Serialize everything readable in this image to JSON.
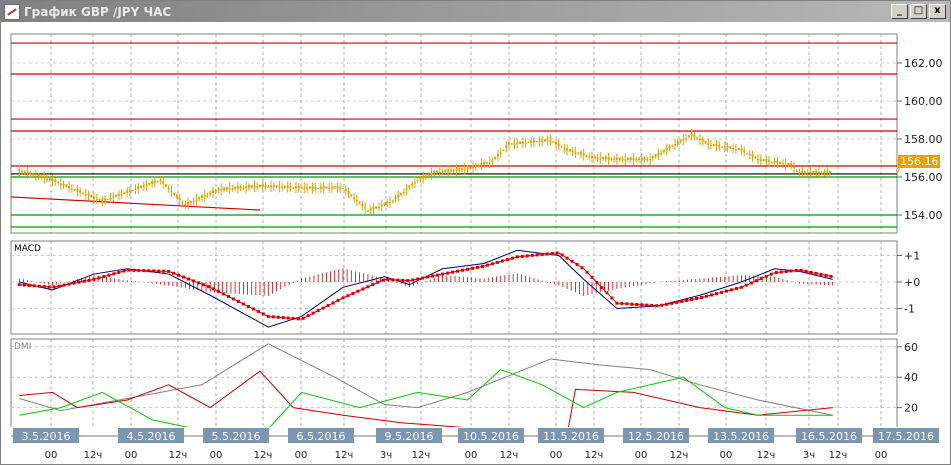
{
  "window": {
    "title": "График GBP /JPY  ЧАС",
    "buttons": {
      "minimize": "_",
      "maximize": "□",
      "close": "x"
    }
  },
  "colors": {
    "price": "#e8a000",
    "resistance": "#cc0000",
    "support": "#009900",
    "last_line": "#000000",
    "macd": "#000080",
    "signal": "#dd0000",
    "histogram": "#cc0000",
    "adx": "#808080",
    "plus_di": "#cc0000",
    "minus_di": "#00cc00",
    "date_label_bg": "#7a96b0"
  },
  "chart_data": [
    {
      "type": "line",
      "panel": "price",
      "title": "",
      "yticks": [
        "162.00",
        "160.00",
        "158.00",
        "156.00",
        "154.00"
      ],
      "ylim": [
        153.0,
        163.5
      ],
      "last_price": "156.16",
      "horizontal_lines": {
        "red": [
          163.05,
          161.42,
          159.05,
          158.42,
          156.58
        ],
        "green": [
          156.0,
          154.0,
          153.37
        ],
        "black": [
          156.16
        ]
      },
      "trendline": [
        [
          0,
          154.95
        ],
        [
          30,
          154.26
        ]
      ],
      "x": [
        1,
        5,
        11,
        18,
        21,
        25,
        30,
        35,
        40,
        43,
        46,
        49,
        51,
        55,
        58,
        60,
        65,
        67,
        70,
        73,
        77,
        82,
        84,
        88,
        90,
        94,
        95,
        99
      ],
      "values": [
        156.3,
        155.8,
        154.7,
        155.8,
        154.5,
        155.3,
        155.5,
        155.4,
        155.4,
        154.2,
        154.7,
        155.8,
        156.2,
        156.4,
        156.8,
        157.7,
        157.9,
        157.4,
        157.0,
        156.9,
        156.9,
        158.2,
        157.7,
        157.4,
        156.9,
        156.6,
        156.2,
        156.2
      ]
    },
    {
      "type": "line",
      "panel": "macd",
      "title": "MACD",
      "yticks": [
        "+1",
        "+0",
        "-1"
      ],
      "ylim": [
        -1.9,
        1.5
      ],
      "x": [
        1,
        5,
        10,
        14,
        19,
        24,
        31,
        35,
        40,
        45,
        48,
        52,
        57,
        61,
        66,
        69,
        73,
        78,
        83,
        88,
        92,
        95,
        99
      ],
      "series": [
        {
          "values": [
            0,
            -0.3,
            0.3,
            0.5,
            0.3,
            -0.5,
            -1.7,
            -1.3,
            -0.2,
            0.2,
            -0.1,
            0.5,
            0.7,
            1.2,
            1.0,
            0.1,
            -1.0,
            -0.9,
            -0.5,
            0,
            0.5,
            0.4,
            0.1
          ]
        },
        {
          "values": [
            -0.1,
            -0.2,
            0.1,
            0.45,
            0.4,
            -0.2,
            -1.3,
            -1.4,
            -0.6,
            0.1,
            0.05,
            0.3,
            0.6,
            0.95,
            1.1,
            0.5,
            -0.8,
            -0.9,
            -0.6,
            -0.2,
            0.35,
            0.45,
            0.2
          ]
        }
      ]
    },
    {
      "type": "line",
      "panel": "dmi",
      "title": "DMI",
      "yticks": [
        "60",
        "40",
        "20"
      ],
      "ylim": [
        0,
        65
      ],
      "series": [
        {
          "x": [
            1,
            6,
            13,
            23,
            31,
            39,
            45,
            49,
            55,
            65,
            71,
            77,
            83,
            90,
            99
          ],
          "values": [
            26,
            18,
            25,
            35,
            62,
            40,
            22,
            20,
            30,
            52,
            48,
            45,
            35,
            25,
            15
          ]
        },
        {
          "x": [
            1,
            5,
            8,
            14,
            19,
            24,
            30,
            34,
            40,
            47,
            52,
            59,
            67,
            68,
            75,
            83,
            90,
            99
          ],
          "values": [
            28,
            30,
            20,
            25,
            35,
            20,
            44,
            20,
            15,
            10,
            8,
            5,
            2,
            32,
            30,
            20,
            15,
            20
          ]
        },
        {
          "x": [
            1,
            6,
            11,
            17,
            23,
            30,
            35,
            42,
            49,
            55,
            59,
            64,
            69,
            73,
            81,
            86,
            90,
            99
          ],
          "values": [
            15,
            20,
            30,
            12,
            5,
            0,
            30,
            20,
            30,
            25,
            45,
            35,
            20,
            30,
            40,
            20,
            15,
            15
          ]
        }
      ]
    }
  ],
  "time_axis": {
    "dates": [
      "3.5.2016",
      "4.5.2016",
      "5.5.2016",
      "6.5.2016",
      "9.5.2016",
      "10.5.2016",
      "11.5.2016",
      "12.5.2016",
      "13.5.2016",
      "16.5.2016",
      "17.5.2016"
    ],
    "hours": [
      "00",
      "12ч",
      "00",
      "12ч",
      "00",
      "12ч",
      "00",
      "12ч",
      "3ч",
      "12ч",
      "00",
      "12ч",
      "00",
      "12ч",
      "00",
      "12ч",
      "00",
      "12ч",
      "3ч",
      "12ч",
      "00"
    ]
  }
}
